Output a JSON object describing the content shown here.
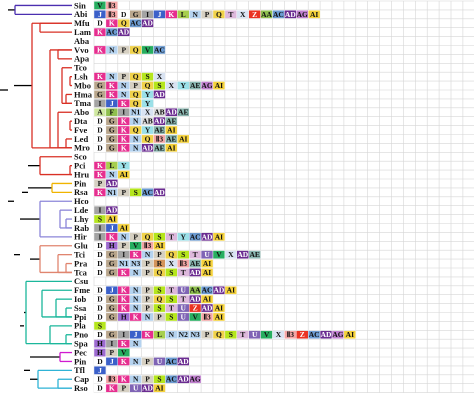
{
  "diagram": {
    "colors": {
      "V": "#27ae60",
      "II3": "#f4a6a6",
      "D": "#ffffff",
      "G": "#b9a68c",
      "I": "#a3a3a3",
      "J": "#3b60c9",
      "K": "#e62e8f",
      "L": "#a7cf4e",
      "N": "#b5d3f0",
      "P": "#d6d0c2",
      "Q": "#f0d24a",
      "T": "#ddb8dc",
      "X": "#d9e3f2",
      "Z": "#ea3323",
      "AA": "#8fbf4f",
      "AC": "#6c9bd1",
      "AD": "#6b2c91",
      "AE": "#8ab6b0",
      "AG": "#bf7fce",
      "AI": "#f5d23b",
      "N1": "#b5d3f0",
      "N2": "#b5d3f0",
      "N3": "#b5d3f0",
      "E": "#a7dca7",
      "F": "#8fbf4f",
      "H": "#9c6ad0",
      "R": "#d4945a",
      "S": "#b5e61d",
      "U": "#7f64b5",
      "Y": "#9be0e8",
      "B": "#e62e8f",
      "C": "#9be0e8",
      "A": "#cfe8a0"
    },
    "branch_colors": {
      "root": "#000000",
      "purple": "#4b2fb0",
      "red": "#d93025",
      "orange": "#f0b400",
      "lavender": "#8c86d9",
      "salmon": "#e0856f",
      "teal": "#1bb79b",
      "magenta": "#d01bd0",
      "cyan": "#2fb3d6"
    },
    "rows": [
      {
        "taxon": "Sin",
        "cells": [
          "V",
          "II3"
        ]
      },
      {
        "taxon": "Abi",
        "cells": [
          "J",
          "II3",
          "D",
          "G",
          "I",
          "J",
          "K",
          "L",
          "N",
          "P",
          "Q",
          "T",
          "X",
          "Z",
          "AA",
          "AC",
          "AD",
          "AG",
          "AI"
        ]
      },
      {
        "taxon": "Mfu",
        "cells": [
          "D",
          "K",
          "Q",
          "AC",
          "AD"
        ]
      },
      {
        "taxon": "Lam",
        "cells": [
          "K",
          "AC",
          "AD"
        ]
      },
      {
        "taxon": "Aba",
        "cells": []
      },
      {
        "taxon": "Vvo",
        "cells": [
          "K",
          "N",
          "P",
          "Q",
          "V",
          "AC"
        ]
      },
      {
        "taxon": "Apa",
        "cells": []
      },
      {
        "taxon": "Tco",
        "cells": []
      },
      {
        "taxon": "Lsh",
        "cells": [
          "K",
          "N",
          "P",
          "Q",
          "S",
          "X"
        ]
      },
      {
        "taxon": "Mbo",
        "cells": [
          "G",
          "K",
          "N",
          "P",
          "Q",
          "S",
          "X",
          "Y",
          "AE",
          "AG",
          "AI"
        ]
      },
      {
        "taxon": "Hma",
        "cells": [
          "G",
          "K",
          "N",
          "Q",
          "Y",
          "AD"
        ]
      },
      {
        "taxon": "Tma",
        "cells": [
          "I",
          "J",
          "K",
          "Q",
          "Y"
        ]
      },
      {
        "taxon": "Abo",
        "cells": [
          "A",
          "F",
          "I",
          "N1",
          "X",
          "AB",
          "AD",
          "AE"
        ]
      },
      {
        "taxon": "Dta",
        "cells": [
          "D",
          "G",
          "K",
          "N",
          "AB",
          "AD",
          "AE"
        ]
      },
      {
        "taxon": "Fve",
        "cells": [
          "D",
          "G",
          "K",
          "Q",
          "Y",
          "AE",
          "AI"
        ]
      },
      {
        "taxon": "Led",
        "cells": [
          "D",
          "G",
          "K",
          "N",
          "Q",
          "II3",
          "AE",
          "AI"
        ]
      },
      {
        "taxon": "Mro",
        "cells": [
          "D",
          "G",
          "K",
          "N",
          "AD",
          "AE",
          "AI"
        ]
      },
      {
        "taxon": "Sco",
        "cells": []
      },
      {
        "taxon": "Pci",
        "cells": [
          "K",
          "L",
          "Y"
        ]
      },
      {
        "taxon": "Hru",
        "cells": [
          "K",
          "N",
          "AI"
        ]
      },
      {
        "taxon": "Pin",
        "cells": [
          "P",
          "AD"
        ]
      },
      {
        "taxon": "Rsa",
        "cells": [
          "K",
          "N1",
          "P",
          "S",
          "AC",
          "AD"
        ]
      },
      {
        "taxon": "Hco",
        "cells": []
      },
      {
        "taxon": "Lde",
        "cells": [
          "I",
          "AD"
        ]
      },
      {
        "taxon": "Lhy",
        "cells": [
          "S",
          "AI"
        ]
      },
      {
        "taxon": "Rab",
        "cells": [
          "I",
          "J",
          "AI"
        ]
      },
      {
        "taxon": "Hir",
        "cells": [
          "I",
          "K",
          "N",
          "P",
          "Q",
          "S",
          "T",
          "Y",
          "AC",
          "AD",
          "AI"
        ]
      },
      {
        "taxon": "Glu",
        "cells": [
          "D",
          "H",
          "P",
          "V",
          "II3",
          "AI"
        ]
      },
      {
        "taxon": "Tci",
        "cells": [
          "D",
          "G",
          "I",
          "K",
          "N",
          "P",
          "Q",
          "S",
          "T",
          "U",
          "V",
          "X",
          "AD",
          "AE"
        ]
      },
      {
        "taxon": "Pra",
        "cells": [
          "D",
          "G",
          "N1",
          "N3",
          "P",
          "R",
          "X",
          "II3",
          "AE",
          "AI"
        ]
      },
      {
        "taxon": "Tca",
        "cells": [
          "D",
          "G",
          "K",
          "N",
          "P",
          "Q",
          "S",
          "T",
          "AD",
          "AI"
        ]
      },
      {
        "taxon": "Csu",
        "cells": []
      },
      {
        "taxon": "Fme",
        "cells": [
          "D",
          "J",
          "K",
          "N",
          "P",
          "S",
          "T",
          "U",
          "AA",
          "AC",
          "AD",
          "AI"
        ]
      },
      {
        "taxon": "Iob",
        "cells": [
          "D",
          "G",
          "K",
          "N",
          "P",
          "Q",
          "S",
          "T",
          "AD",
          "AI"
        ]
      },
      {
        "taxon": "Ssa",
        "cells": [
          "D",
          "G",
          "K",
          "N",
          "P",
          "S",
          "T",
          "U",
          "Z",
          "AD",
          "AI"
        ]
      },
      {
        "taxon": "Ppi",
        "cells": [
          "D",
          "G",
          "H",
          "K",
          "N",
          "P",
          "S",
          "U",
          "V",
          "II3",
          "AI"
        ]
      },
      {
        "taxon": "Pla",
        "cells": [
          "S"
        ]
      },
      {
        "taxon": "Pno",
        "cells": [
          "D",
          "G",
          "I",
          "J",
          "K",
          "L",
          "N",
          "N2",
          "N3",
          "P",
          "Q",
          "S",
          "T",
          "U",
          "V",
          "X",
          "II3",
          "Z",
          "AC",
          "AD",
          "AG",
          "AI"
        ]
      },
      {
        "taxon": "Spa",
        "cells": [
          "H",
          "I",
          "K",
          "N"
        ]
      },
      {
        "taxon": "Pec",
        "cells": [
          "H",
          "P",
          "V"
        ]
      },
      {
        "taxon": "Pin",
        "cells": [
          "D",
          "J",
          "K",
          "N",
          "P",
          "U",
          "AC",
          "AD"
        ]
      },
      {
        "taxon": "Tfl",
        "cells": [
          "J"
        ]
      },
      {
        "taxon": "Cap",
        "cells": [
          "D",
          "II3",
          "K",
          "N",
          "P",
          "S",
          "AC",
          "AD",
          "AG"
        ]
      },
      {
        "taxon": "Rso",
        "cells": [
          "D",
          "K",
          "P",
          "U",
          "AD",
          "AI"
        ]
      }
    ],
    "tree": [
      {
        "c": "purple",
        "x": 15,
        "t": 0,
        "b": 1
      },
      {
        "c": "red",
        "x": 32,
        "t": 2,
        "b": 16
      },
      {
        "c": "red",
        "x": 40,
        "t": 2,
        "b": 3
      },
      {
        "c": "red",
        "x": 50,
        "t": 5,
        "b": 16
      },
      {
        "c": "red",
        "x": 58,
        "t": 5,
        "b": 6
      },
      {
        "c": "red",
        "x": 62,
        "t": 7,
        "b": 11
      },
      {
        "c": "red",
        "x": 70,
        "t": 8,
        "b": 9
      },
      {
        "c": "red",
        "x": 66,
        "t": 10,
        "b": 11
      },
      {
        "c": "red",
        "x": 58,
        "t": 12,
        "b": 16
      },
      {
        "c": "red",
        "x": 70,
        "t": 13,
        "b": 14
      },
      {
        "c": "red",
        "x": 66,
        "t": 15,
        "b": 16
      },
      {
        "c": "red",
        "x": 40,
        "t": 17,
        "b": 19
      },
      {
        "c": "red",
        "x": 70,
        "t": 18,
        "b": 19
      },
      {
        "c": "orange",
        "x": 52,
        "t": 20,
        "b": 21
      },
      {
        "c": "lavender",
        "x": 40,
        "t": 22,
        "b": 26
      },
      {
        "c": "lavender",
        "x": 60,
        "t": 23,
        "b": 25
      },
      {
        "c": "lavender",
        "x": 66,
        "t": 24,
        "b": 25
      },
      {
        "c": "salmon",
        "x": 40,
        "t": 27,
        "b": 30
      },
      {
        "c": "salmon",
        "x": 58,
        "t": 28,
        "b": 30
      },
      {
        "c": "salmon",
        "x": 66,
        "t": 29,
        "b": 30
      },
      {
        "c": "teal",
        "x": 26,
        "t": 31,
        "b": 38
      },
      {
        "c": "teal",
        "x": 42,
        "t": 32,
        "b": 35
      },
      {
        "c": "teal",
        "x": 56,
        "t": 33,
        "b": 35
      },
      {
        "c": "teal",
        "x": 66,
        "t": 34,
        "b": 35
      },
      {
        "c": "teal",
        "x": 50,
        "t": 36,
        "b": 38
      },
      {
        "c": "teal",
        "x": 66,
        "t": 37,
        "b": 38
      },
      {
        "c": "magenta",
        "x": 60,
        "t": 39,
        "b": 40
      },
      {
        "c": "cyan",
        "x": 38,
        "t": 41,
        "b": 43
      },
      {
        "c": "cyan",
        "x": 58,
        "t": 42,
        "b": 43
      }
    ],
    "tree_links": [
      {
        "c": "root",
        "x1": 0,
        "x2": 8,
        "y": 9.5
      },
      {
        "c": "root",
        "x1": 8,
        "x2": 15,
        "y": 0.5
      },
      {
        "c": "root",
        "x1": 8,
        "x2": 14,
        "y": 22
      },
      {
        "c": "root",
        "x1": 14,
        "x2": 22,
        "y": 9
      },
      {
        "c": "root",
        "x1": 14,
        "x2": 20,
        "y": 28
      },
      {
        "c": "root",
        "x1": 22,
        "x2": 32,
        "y": 9
      },
      {
        "c": "root",
        "x1": 22,
        "x2": 28,
        "y": 21
      },
      {
        "c": "root",
        "x1": 28,
        "x2": 40,
        "y": 18
      },
      {
        "c": "root",
        "x1": 28,
        "x2": 52,
        "y": 20.5
      },
      {
        "c": "root",
        "x1": 20,
        "x2": 30,
        "y": 24
      },
      {
        "c": "root",
        "x1": 30,
        "x2": 40,
        "y": 24
      },
      {
        "c": "root",
        "x1": 30,
        "x2": 40,
        "y": 28.5
      },
      {
        "c": "root",
        "x1": 20,
        "x2": 24,
        "y": 36
      },
      {
        "c": "root",
        "x1": 24,
        "x2": 26,
        "y": 34.5
      },
      {
        "c": "root",
        "x1": 24,
        "x2": 30,
        "y": 41
      },
      {
        "c": "root",
        "x1": 30,
        "x2": 60,
        "y": 39.5
      },
      {
        "c": "root",
        "x1": 30,
        "x2": 38,
        "y": 42
      }
    ]
  }
}
